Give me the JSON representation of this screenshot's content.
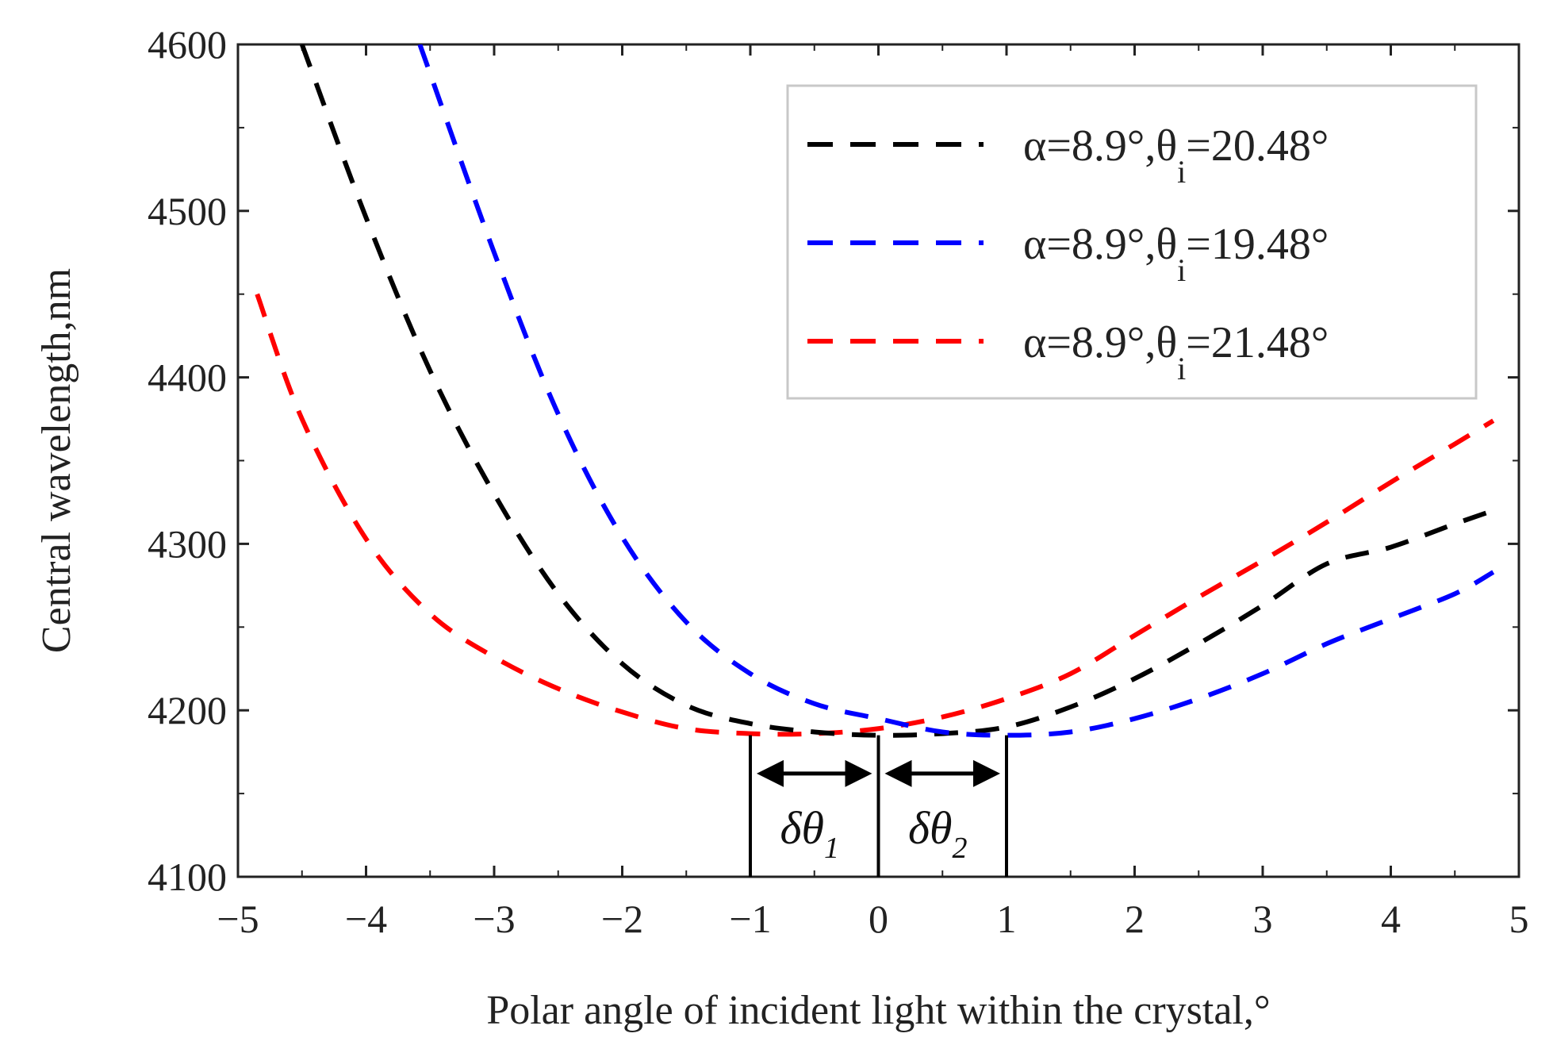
{
  "chart_data": {
    "type": "line",
    "title": "",
    "xlabel": "Polar angle of incident light within the crystal,°",
    "ylabel": "Central wavelength,nm",
    "xlim": [
      -5,
      5
    ],
    "ylim": [
      4100,
      4600
    ],
    "xticks": [
      -5,
      -4,
      -3,
      -2,
      -1,
      0,
      1,
      2,
      3,
      4,
      5
    ],
    "xtick_labels": [
      "−5",
      "−4",
      "−3",
      "−2",
      "−1",
      "0",
      "1",
      "2",
      "3",
      "4",
      "5"
    ],
    "yticks": [
      4100,
      4200,
      4300,
      4400,
      4500,
      4600
    ],
    "ytick_labels": [
      "4100",
      "4200",
      "4300",
      "4400",
      "4500",
      "4600"
    ],
    "grid": false,
    "legend_position": "top-right",
    "series": [
      {
        "label_main": "α=8.9°,θ",
        "label_sub": "i",
        "label_tail": "=20.48°",
        "color": "#000000",
        "linestyle": "dashed",
        "x": [
          -4.5,
          -4,
          -3.5,
          -3,
          -2.5,
          -2,
          -1.5,
          -1,
          -0.5,
          0,
          0.5,
          1,
          1.5,
          2,
          2.5,
          3,
          3.5,
          4,
          4.5,
          4.8
        ],
        "y": [
          4600,
          4496,
          4404,
          4330,
          4270,
          4228,
          4203,
          4192,
          4187,
          4185,
          4186,
          4190,
          4202,
          4219,
          4240,
          4263,
          4288,
          4298,
          4312,
          4320
        ]
      },
      {
        "label_main": "α=8.9°,θ",
        "label_sub": "i",
        "label_tail": "=19.48°",
        "color": "#0000ff",
        "linestyle": "dashed",
        "x": [
          -3.58,
          -3,
          -2.5,
          -2,
          -1.5,
          -1,
          -0.5,
          0,
          0.5,
          1,
          1.5,
          2,
          2.5,
          3,
          3.5,
          4,
          4.5,
          4.8
        ],
        "y": [
          4600,
          4475,
          4378,
          4304,
          4253,
          4222,
          4204,
          4195,
          4187,
          4185,
          4187,
          4195,
          4207,
          4222,
          4240,
          4255,
          4270,
          4283
        ]
      },
      {
        "label_main": "α=8.9°,θ",
        "label_sub": "i",
        "label_tail": "=21.48°",
        "color": "#ff0000",
        "linestyle": "dashed",
        "x": [
          -4.85,
          -4.5,
          -4,
          -3.5,
          -3,
          -2.5,
          -2,
          -1.5,
          -1,
          -0.5,
          0,
          0.5,
          1,
          1.5,
          2,
          2.5,
          3,
          3.5,
          4,
          4.5,
          4.8
        ],
        "y": [
          4450,
          4375,
          4303,
          4258,
          4232,
          4213,
          4199,
          4189,
          4186,
          4186,
          4189,
          4196,
          4207,
          4222,
          4245,
          4268,
          4290,
          4313,
          4337,
          4360,
          4374
        ]
      }
    ],
    "annotations": [
      {
        "text_main": "δθ",
        "text_sub": "1",
        "x_from": -1,
        "x_to": 0
      },
      {
        "text_main": "δθ",
        "text_sub": "2",
        "x_from": 0,
        "x_to": 1
      }
    ],
    "marker_lines_x": [
      -1,
      0,
      1
    ]
  }
}
